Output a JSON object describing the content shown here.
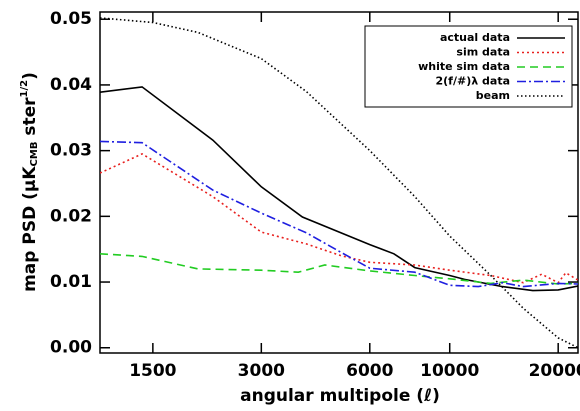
{
  "chart_data": {
    "type": "line",
    "xlabel": "angular multipole (ℓ)",
    "ylabel": [
      "map PSD (μK",
      "CMB",
      " ster",
      "1/2",
      ")"
    ],
    "xscale": "log",
    "xlim": [
      1070,
      22700
    ],
    "ylim": [
      -0.0008,
      0.0511
    ],
    "xticks": [
      1500,
      3000,
      6000,
      10000,
      20000
    ],
    "yticks": [
      {
        "value": 0,
        "label": "0.00"
      },
      {
        "value": 0.01,
        "label": "0.01"
      },
      {
        "value": 0.02,
        "label": "0.02"
      },
      {
        "value": 0.03,
        "label": "0.03"
      },
      {
        "value": 0.04,
        "label": "0.04"
      },
      {
        "value": 0.05,
        "label": "0.05"
      }
    ],
    "legend": "upper right",
    "series": [
      {
        "name": "actual data",
        "color": "#000000",
        "style": "solid",
        "x": [
          1070,
          1400,
          2200,
          3000,
          3900,
          6000,
          7000,
          8000,
          10000,
          11000,
          14000,
          17000,
          20000,
          22700
        ],
        "values": [
          0.0389,
          0.0397,
          0.0316,
          0.0245,
          0.0199,
          0.0157,
          0.0143,
          0.0122,
          0.011,
          0.0104,
          0.0093,
          0.0087,
          0.0088,
          0.0094
        ]
      },
      {
        "name": "sim data",
        "color": "#e8201e",
        "style": "dotted",
        "x": [
          1070,
          1400,
          2200,
          3000,
          4000,
          5000,
          6000,
          8000,
          10000,
          13000,
          16000,
          18000,
          20000,
          21000,
          22700
        ],
        "values": [
          0.0266,
          0.0295,
          0.023,
          0.0176,
          0.0158,
          0.014,
          0.013,
          0.0126,
          0.0118,
          0.011,
          0.0099,
          0.0112,
          0.0099,
          0.0114,
          0.0103
        ]
      },
      {
        "name": "white sim data",
        "color": "#22cc22",
        "style": "dashed",
        "x": [
          1070,
          1400,
          2000,
          3000,
          3800,
          4500,
          6000,
          8000,
          10000,
          13000,
          16000,
          20000,
          22700
        ],
        "values": [
          0.0143,
          0.0139,
          0.012,
          0.0118,
          0.0115,
          0.0126,
          0.0117,
          0.011,
          0.0105,
          0.0098,
          0.0103,
          0.0097,
          0.0098
        ]
      },
      {
        "name": "2(f/#)λ data",
        "color": "#1f1fe0",
        "style": "dashdot",
        "x": [
          1070,
          1400,
          2200,
          3000,
          4000,
          5000,
          6000,
          8000,
          10000,
          12000,
          14000,
          16000,
          20000,
          22700
        ],
        "values": [
          0.0314,
          0.0312,
          0.024,
          0.0205,
          0.0175,
          0.0145,
          0.0121,
          0.0115,
          0.0095,
          0.0093,
          0.0099,
          0.0093,
          0.0098,
          0.0097
        ]
      },
      {
        "name": "beam",
        "color": "#000000",
        "style": "finedot",
        "x": [
          1070,
          1500,
          2000,
          3000,
          4000,
          6000,
          8000,
          10000,
          13000,
          16000,
          20000,
          22700
        ],
        "values": [
          0.0502,
          0.0495,
          0.048,
          0.044,
          0.039,
          0.03,
          0.023,
          0.017,
          0.011,
          0.006,
          0.0015,
          0.0
        ]
      }
    ]
  }
}
